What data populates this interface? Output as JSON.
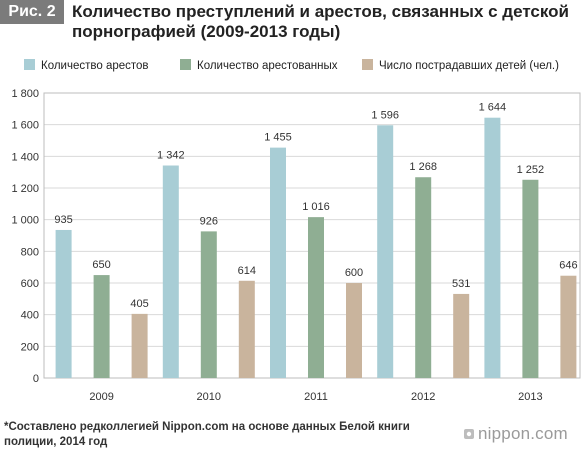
{
  "header": {
    "fig_label": "Рис. 2",
    "title": "Количество преступлений и арестов, связанных с детской порнографией (2009-2013 годы)"
  },
  "footer": {
    "note": "*Составлено редколлегией Nippon.com на основе данных Белой книги полиции, 2014 год",
    "brand": "nippon.com"
  },
  "chart_data": {
    "type": "bar",
    "title": "Количество преступлений и арестов, связанных с детской порнографией (2009-2013 годы)",
    "categories": [
      "2009",
      "2010",
      "2011",
      "2012",
      "2013"
    ],
    "series": [
      {
        "name": "Количество арестов",
        "values": [
          935,
          1342,
          1455,
          1596,
          1644
        ],
        "labels": [
          "935",
          "1 342",
          "1 455",
          "1 596",
          "1 644"
        ],
        "color": "#a8cdd5"
      },
      {
        "name": "Количество арестованных",
        "values": [
          650,
          926,
          1016,
          1268,
          1252
        ],
        "labels": [
          "650",
          "926",
          "1 016",
          "1 268",
          "1 252"
        ],
        "color": "#8fae93"
      },
      {
        "name": "Число пострадавших детей (чел.)",
        "values": [
          405,
          614,
          600,
          531,
          646
        ],
        "labels": [
          "405",
          "614",
          "600",
          "531",
          "646"
        ],
        "color": "#c9b49d"
      }
    ],
    "ylim": [
      0,
      1800
    ],
    "yticks": [
      0,
      200,
      400,
      600,
      800,
      1000,
      1200,
      1400,
      1600,
      1800
    ],
    "ytick_labels": [
      "0",
      "200",
      "400",
      "600",
      "800",
      "1 000",
      "1 200",
      "1 400",
      "1 600",
      "1 800"
    ],
    "grid": true,
    "legend_position": "top"
  }
}
